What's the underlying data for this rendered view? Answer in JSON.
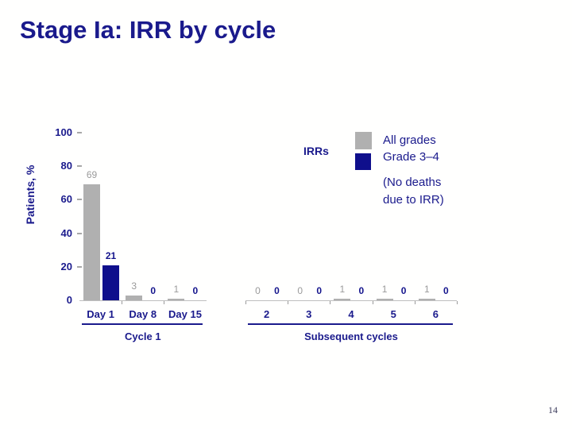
{
  "slide": {
    "title": "Stage Ia: IRR by cycle",
    "page_number": "14"
  },
  "chart_data": {
    "type": "bar",
    "title": "Stage Ia: IRR by cycle",
    "ylabel": "Patients, %",
    "xlabel": "",
    "ylim": [
      0,
      100
    ],
    "yticks": [
      100,
      80,
      60,
      40,
      20,
      0
    ],
    "grid": false,
    "legend_position": "top-right",
    "categories": [
      "Day 1",
      "Day 8",
      "Day 15",
      "2",
      "3",
      "4",
      "5",
      "6"
    ],
    "groups": [
      {
        "label": "Cycle 1",
        "category_indices": [
          0,
          1,
          2
        ]
      },
      {
        "label": "Subsequent cycles",
        "category_indices": [
          3,
          4,
          5,
          6,
          7
        ]
      }
    ],
    "series": [
      {
        "name": "All grades",
        "color": "#b0b0b0",
        "label_color": "#9a9a9a",
        "values": [
          69,
          3,
          1,
          0,
          0,
          1,
          1,
          1
        ]
      },
      {
        "name": "Grade 3–4",
        "color": "#0f0f8c",
        "label_color": "#14148c",
        "values": [
          21,
          0,
          0,
          0,
          0,
          0,
          0,
          0
        ]
      }
    ],
    "legend": {
      "title": "IRRs",
      "entries": [
        {
          "label": "All grades",
          "color": "#b0b0b0"
        },
        {
          "label": "Grade 3–4",
          "color": "#0f0f8c"
        }
      ],
      "note_lines": [
        "(No deaths",
        "due to IRR)"
      ]
    }
  },
  "colors": {
    "navy_text": "#1a1a8c",
    "all_grades_bar": "#b0b0b0",
    "grade_3_4_bar": "#0f0f8c",
    "gray_value_label": "#9a9a9a",
    "axis_line": "#bfbfbf"
  }
}
